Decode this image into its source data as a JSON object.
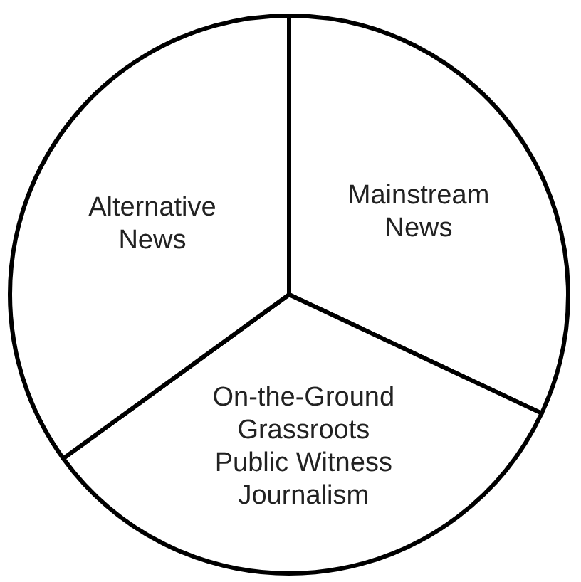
{
  "chart_data": {
    "type": "pie",
    "categories": [
      "Mainstream\nNews",
      "On-the-Ground\nGrassroots\nPublic Witness\nJournalism",
      "Alternative\nNews"
    ],
    "values": [
      32,
      33,
      35
    ],
    "colors": [
      "#ffffff",
      "#ffffff",
      "#ffffff"
    ]
  }
}
